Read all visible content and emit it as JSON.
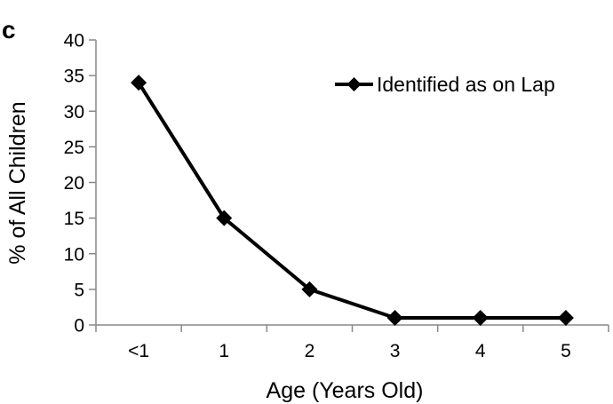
{
  "panel_label": "c",
  "chart_data": {
    "type": "line",
    "categories": [
      "<1",
      "1",
      "2",
      "3",
      "4",
      "5"
    ],
    "series": [
      {
        "name": "Identified as on Lap",
        "values": [
          34,
          15,
          5,
          1,
          1,
          1
        ],
        "color": "#000000",
        "marker": "diamond"
      }
    ],
    "xlabel": "Age (Years Old)",
    "ylabel": "% of All Children",
    "ylim": [
      0,
      40
    ],
    "yticks": [
      0,
      5,
      10,
      15,
      20,
      25,
      30,
      35,
      40
    ],
    "grid": false,
    "legend_position": "top-right"
  }
}
